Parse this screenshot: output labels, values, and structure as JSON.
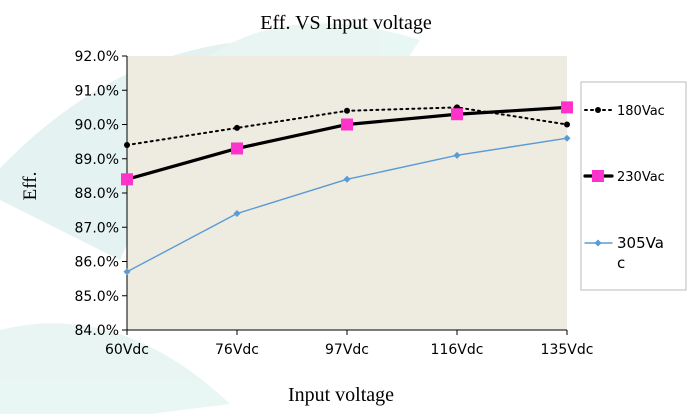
{
  "chart_data": {
    "type": "line",
    "title": "Eff. VS Input voltage",
    "xlabel": "Input voltage",
    "ylabel": "Eff.",
    "categories": [
      "60Vdc",
      "76Vdc",
      "97Vdc",
      "116Vdc",
      "135Vdc"
    ],
    "y_ticks": [
      "84.0%",
      "85.0%",
      "86.0%",
      "87.0%",
      "88.0%",
      "89.0%",
      "90.0%",
      "91.0%",
      "92.0%"
    ],
    "ylim": [
      84.0,
      92.0
    ],
    "grid": false,
    "legend_position": "right",
    "series": [
      {
        "name": "180Vac",
        "values": [
          89.4,
          89.9,
          90.4,
          90.5,
          90.0
        ],
        "color": "#000000",
        "line_style": "dotted",
        "marker": "circle"
      },
      {
        "name": "230Vac",
        "values": [
          88.4,
          89.3,
          90.0,
          90.3,
          90.5
        ],
        "color": "#000000",
        "marker_color": "#ff33cc",
        "line_style": "solid-bold",
        "marker": "square"
      },
      {
        "name": "305Vac",
        "values": [
          85.7,
          87.4,
          88.4,
          89.1,
          89.6
        ],
        "color": "#5b9bd5",
        "line_style": "solid",
        "marker": "diamond"
      }
    ],
    "legend_labels": [
      [
        "180Vac"
      ],
      [
        "230Vac"
      ],
      [
        "305Va",
        "c"
      ]
    ]
  },
  "colors": {
    "plot_background": "#eeebe0",
    "watermark": "#d9eeec"
  }
}
